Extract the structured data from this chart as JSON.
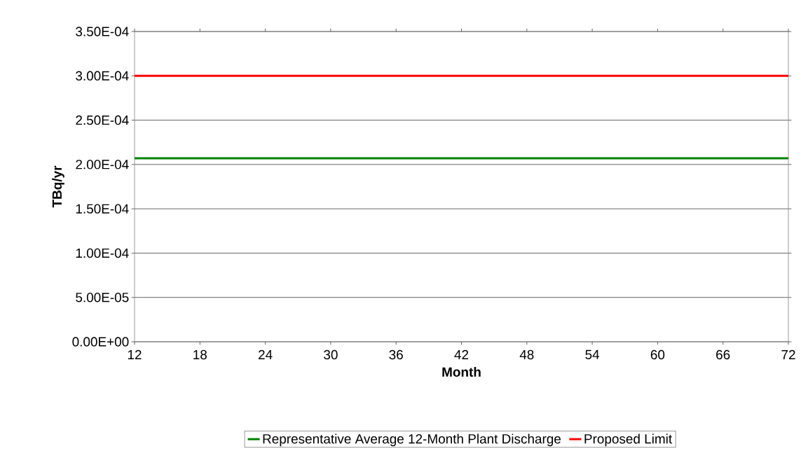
{
  "chart_data": {
    "type": "line",
    "xlabel": "Month",
    "ylabel": "TBq/yr",
    "x": [
      12,
      72
    ],
    "series": [
      {
        "name": "Representative Average 12-Month Plant Discharge",
        "color": "#008000",
        "values": [
          0.000207,
          0.000207
        ]
      },
      {
        "name": "Proposed Limit",
        "color": "#ff0000",
        "values": [
          0.0003,
          0.0003
        ]
      }
    ],
    "xlim": [
      12,
      72
    ],
    "xticks": [
      12,
      18,
      24,
      30,
      36,
      42,
      48,
      54,
      60,
      66,
      72
    ],
    "ylim": [
      0,
      0.00035
    ],
    "yticks": [
      {
        "value": 0,
        "label": "0.00E+00"
      },
      {
        "value": 5e-05,
        "label": "5.00E-05"
      },
      {
        "value": 0.0001,
        "label": "1.00E-04"
      },
      {
        "value": 0.00015,
        "label": "1.50E-04"
      },
      {
        "value": 0.0002,
        "label": "2.00E-04"
      },
      {
        "value": 0.00025,
        "label": "2.50E-04"
      },
      {
        "value": 0.0003,
        "label": "3.00E-04"
      },
      {
        "value": 0.00035,
        "label": "3.50E-04"
      }
    ],
    "grid": "y",
    "legend": "bottom"
  }
}
